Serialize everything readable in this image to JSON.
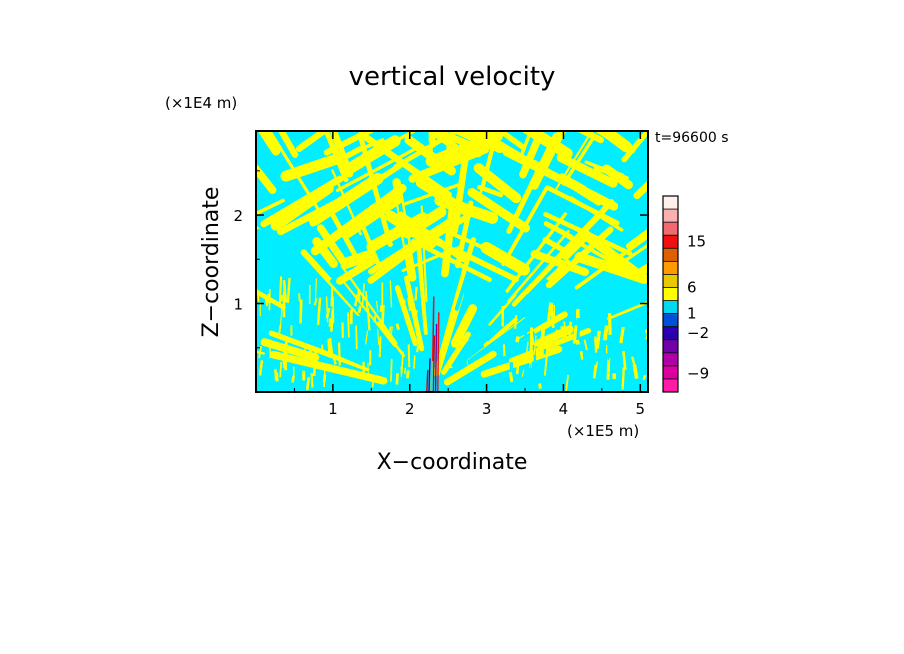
{
  "chart_data": {
    "type": "heatmap",
    "title": "vertical velocity",
    "xlabel": "X−coordinate",
    "ylabel": "Z−coordinate",
    "x_unit": "(×1E5 m)",
    "y_unit": "(×1E4 m)",
    "time_label": "t=96600 s",
    "xlim": [
      0,
      5.1
    ],
    "ylim": [
      0,
      2.95
    ],
    "x_ticks": [
      1,
      2,
      3,
      4,
      5
    ],
    "y_ticks": [
      1,
      2
    ],
    "x_tick_labels": [
      "1",
      "2",
      "3",
      "4",
      "5"
    ],
    "y_tick_labels": [
      "1",
      "2"
    ],
    "field_colors": {
      "positive": "#ffff00",
      "negative": "#00eeff",
      "strong": "#c8001e"
    },
    "colorbar": {
      "labels": [
        {
          "value": 15,
          "text": "15"
        },
        {
          "value": 6,
          "text": "6"
        },
        {
          "value": 1,
          "text": "1"
        },
        {
          "value": -2,
          "text": "−2"
        },
        {
          "value": -9,
          "text": "−9"
        }
      ],
      "bands": [
        "#ff1aa8",
        "#dd00a0",
        "#b000a8",
        "#7000a8",
        "#2a00b0",
        "#0050d8",
        "#00d8f0",
        "#ffff00",
        "#e8c800",
        "#ff9a00",
        "#e06000",
        "#f01010",
        "#f06a70",
        "#f8b0b0",
        "#fff0ec"
      ]
    }
  }
}
